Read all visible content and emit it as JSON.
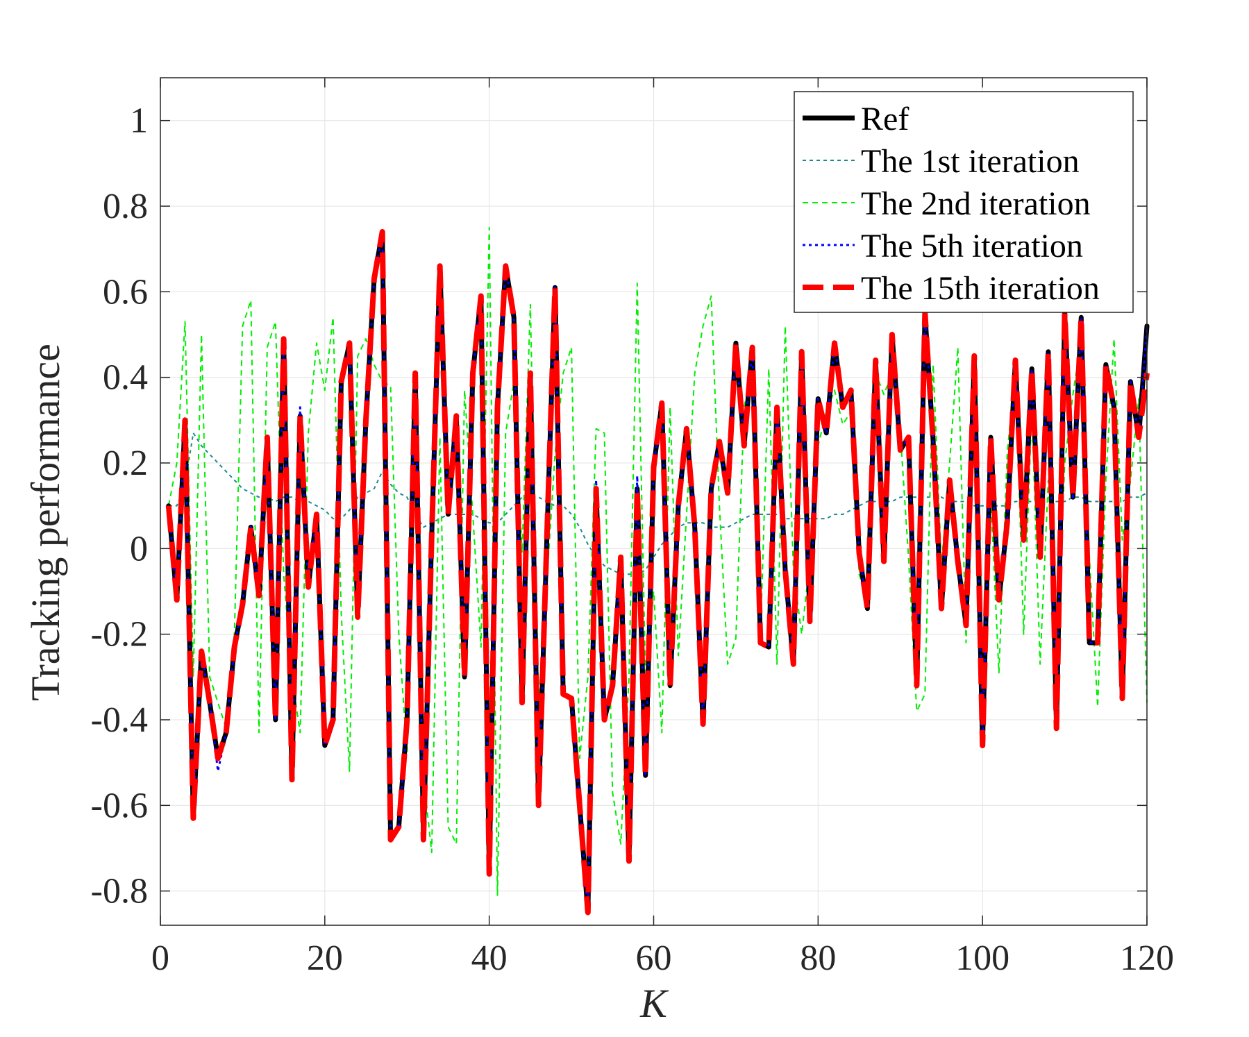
{
  "chart_data": {
    "type": "line",
    "xlabel": "K",
    "ylabel": "Tracking performance",
    "xlim": [
      0,
      120
    ],
    "ylim": [
      -0.88,
      1.1
    ],
    "xticks": [
      0,
      20,
      40,
      60,
      80,
      100,
      120
    ],
    "yticks": [
      -0.8,
      -0.6,
      -0.4,
      -0.2,
      0,
      0.2,
      0.4,
      0.6,
      0.8,
      1
    ],
    "ytick_labels": [
      "-0.8",
      "-0.6",
      "-0.4",
      "-0.2",
      "0",
      "0.2",
      "0.4",
      "0.6",
      "0.8",
      "1"
    ],
    "xtick_labels": [
      "0",
      "20",
      "40",
      "60",
      "80",
      "100",
      "120"
    ],
    "grid": true,
    "legend_position": "top-right",
    "x": [
      1,
      2,
      3,
      4,
      5,
      6,
      7,
      8,
      9,
      10,
      11,
      12,
      13,
      14,
      15,
      16,
      17,
      18,
      19,
      20,
      21,
      22,
      23,
      24,
      25,
      26,
      27,
      28,
      29,
      30,
      31,
      32,
      33,
      34,
      35,
      36,
      37,
      38,
      39,
      40,
      41,
      42,
      43,
      44,
      45,
      46,
      47,
      48,
      49,
      50,
      51,
      52,
      53,
      54,
      55,
      56,
      57,
      58,
      59,
      60,
      61,
      62,
      63,
      64,
      65,
      66,
      67,
      68,
      69,
      70,
      71,
      72,
      73,
      74,
      75,
      76,
      77,
      78,
      79,
      80,
      81,
      82,
      83,
      84,
      85,
      86,
      87,
      88,
      89,
      90,
      91,
      92,
      93,
      94,
      95,
      96,
      97,
      98,
      99,
      100,
      101,
      102,
      103,
      104,
      105,
      106,
      107,
      108,
      109,
      110,
      111,
      112,
      113,
      114,
      115,
      116,
      117,
      118,
      119,
      120
    ],
    "series": [
      {
        "name": "Ref",
        "color": "#000000",
        "dash": "solid",
        "width": 7,
        "values": [
          0.1,
          -0.12,
          0.3,
          -0.63,
          -0.24,
          -0.36,
          -0.49,
          -0.43,
          -0.23,
          -0.13,
          0.05,
          -0.11,
          0.26,
          -0.4,
          0.49,
          -0.54,
          0.31,
          -0.09,
          0.08,
          -0.46,
          -0.4,
          0.39,
          0.48,
          -0.16,
          0.3,
          0.63,
          0.74,
          -0.68,
          -0.65,
          -0.4,
          0.41,
          -0.68,
          0.03,
          0.66,
          0.08,
          0.31,
          -0.3,
          0.41,
          0.59,
          -0.76,
          0.33,
          0.66,
          0.54,
          -0.36,
          0.41,
          -0.6,
          0.02,
          0.61,
          -0.34,
          -0.35,
          -0.6,
          -0.85,
          0.14,
          -0.4,
          -0.32,
          -0.02,
          -0.73,
          0.14,
          -0.53,
          0.19,
          0.34,
          -0.32,
          0.1,
          0.28,
          0.05,
          -0.41,
          0.14,
          0.25,
          0.13,
          0.48,
          0.24,
          0.47,
          -0.22,
          -0.23,
          0.33,
          -0.05,
          -0.27,
          0.46,
          -0.17,
          0.35,
          0.27,
          0.48,
          0.33,
          0.37,
          -0.01,
          -0.14,
          0.44,
          -0.03,
          0.5,
          0.23,
          0.26,
          -0.32,
          0.55,
          0.25,
          -0.14,
          0.16,
          -0.03,
          -0.18,
          0.45,
          -0.46,
          0.26,
          -0.12,
          0.06,
          0.44,
          0.02,
          0.42,
          -0.02,
          0.46,
          -0.42,
          0.55,
          0.12,
          0.54,
          -0.22,
          -0.22,
          0.43,
          0.33,
          -0.35,
          0.39,
          0.26,
          0.52
        ]
      },
      {
        "name": "The 1st iteration",
        "color": "#1a8a8a",
        "dash": "5,5",
        "width": 2,
        "values": [
          0.1,
          0.1,
          0.15,
          0.27,
          0.24,
          0.22,
          0.2,
          0.18,
          0.16,
          0.14,
          0.13,
          0.12,
          0.12,
          0.11,
          0.12,
          0.12,
          0.11,
          0.11,
          0.1,
          0.09,
          0.07,
          0.07,
          0.09,
          0.12,
          0.13,
          0.14,
          0.18,
          0.15,
          0.13,
          0.12,
          0.08,
          0.05,
          0.06,
          0.07,
          0.08,
          0.08,
          0.08,
          0.08,
          0.07,
          0.06,
          0.06,
          0.08,
          0.1,
          0.12,
          0.12,
          0.12,
          0.11,
          0.1,
          0.1,
          0.08,
          0.05,
          0.01,
          -0.02,
          -0.04,
          -0.05,
          -0.06,
          -0.06,
          -0.06,
          -0.05,
          -0.02,
          0.01,
          0.03,
          0.05,
          0.06,
          0.06,
          0.06,
          0.05,
          0.05,
          0.05,
          0.06,
          0.07,
          0.08,
          0.08,
          0.08,
          0.08,
          0.07,
          0.07,
          0.07,
          0.07,
          0.07,
          0.07,
          0.08,
          0.08,
          0.09,
          0.1,
          0.11,
          0.11,
          0.11,
          0.11,
          0.12,
          0.12,
          0.12,
          0.12,
          0.12,
          0.12,
          0.11,
          0.11,
          0.11,
          0.1,
          0.1,
          0.1,
          0.1,
          0.1,
          0.11,
          0.11,
          0.11,
          0.11,
          0.11,
          0.11,
          0.11,
          0.12,
          0.12,
          0.11,
          0.11,
          0.11,
          0.11,
          0.11,
          0.12,
          0.12,
          0.13
        ]
      },
      {
        "name": "The 2nd iteration",
        "color": "#00ee00",
        "dash": "8,6",
        "width": 2,
        "values": [
          0.1,
          0.2,
          0.53,
          -0.3,
          0.5,
          -0.3,
          -0.36,
          -0.42,
          -0.2,
          0.52,
          0.58,
          -0.43,
          0.47,
          0.53,
          -0.06,
          -0.3,
          -0.43,
          0.27,
          0.48,
          0.37,
          0.54,
          -0.15,
          -0.52,
          0.45,
          0.49,
          0.43,
          0.39,
          0.38,
          -0.2,
          -0.48,
          0.18,
          -0.53,
          -0.71,
          0.26,
          -0.65,
          -0.69,
          0.37,
          0.08,
          -0.23,
          0.75,
          -0.81,
          0.27,
          0.39,
          -0.01,
          0.57,
          -0.36,
          -0.08,
          0.22,
          0.41,
          0.47,
          -0.49,
          -0.3,
          0.28,
          0.27,
          -0.57,
          -0.69,
          -0.3,
          0.62,
          -0.3,
          -0.1,
          -0.43,
          0.33,
          -0.25,
          0.08,
          0.41,
          0.52,
          0.59,
          0.1,
          -0.27,
          -0.21,
          0.33,
          0.42,
          -0.2,
          0.42,
          -0.27,
          0.52,
          -0.05,
          -0.2,
          -0.03,
          0.24,
          0.32,
          0.37,
          0.29,
          0.32,
          -0.06,
          -0.12,
          0.41,
          0.36,
          0.41,
          0.27,
          -0.02,
          -0.38,
          -0.34,
          0.43,
          -0.04,
          0.2,
          0.47,
          -0.22,
          0.44,
          -0.35,
          0.12,
          -0.29,
          0.22,
          0.43,
          -0.2,
          0.33,
          -0.27,
          0.16,
          -0.27,
          0.2,
          0.36,
          0.49,
          -0.02,
          -0.37,
          0.16,
          0.49,
          0.02,
          0.16,
          0.35,
          -0.36
        ]
      },
      {
        "name": "The 5th iteration",
        "color": "#0000ff",
        "dash": "4,5",
        "width": 3,
        "values": [
          0.1,
          -0.12,
          0.3,
          -0.63,
          -0.24,
          -0.36,
          -0.52,
          -0.43,
          -0.23,
          -0.13,
          0.05,
          -0.11,
          0.26,
          -0.4,
          0.49,
          -0.54,
          0.33,
          -0.09,
          0.08,
          -0.46,
          -0.4,
          0.39,
          0.48,
          -0.16,
          0.3,
          0.63,
          0.74,
          -0.68,
          -0.65,
          -0.4,
          0.41,
          -0.68,
          0.03,
          0.66,
          0.08,
          0.31,
          -0.3,
          0.41,
          0.59,
          -0.76,
          0.33,
          0.66,
          0.54,
          -0.36,
          0.41,
          -0.6,
          0.02,
          0.61,
          -0.34,
          -0.35,
          -0.6,
          -0.85,
          0.16,
          -0.4,
          -0.32,
          -0.02,
          -0.73,
          0.17,
          -0.53,
          0.19,
          0.34,
          -0.32,
          0.1,
          0.28,
          0.05,
          -0.41,
          0.14,
          0.25,
          0.13,
          0.48,
          0.24,
          0.47,
          -0.22,
          -0.23,
          0.33,
          -0.05,
          -0.27,
          0.46,
          -0.17,
          0.35,
          0.27,
          0.48,
          0.33,
          0.37,
          -0.01,
          -0.14,
          0.44,
          -0.03,
          0.5,
          0.23,
          0.26,
          -0.32,
          0.55,
          0.25,
          -0.14,
          0.16,
          -0.03,
          -0.18,
          0.45,
          -0.46,
          0.26,
          -0.12,
          0.06,
          0.44,
          0.02,
          0.42,
          -0.02,
          0.46,
          -0.42,
          0.55,
          0.12,
          0.54,
          -0.22,
          -0.22,
          0.43,
          0.33,
          -0.35,
          0.39,
          0.26,
          0.52
        ]
      },
      {
        "name": "The 15th iteration",
        "color": "#ff0000",
        "dash": "38,14",
        "width": 8,
        "values": [
          0.1,
          -0.12,
          0.3,
          -0.63,
          -0.24,
          -0.36,
          -0.49,
          -0.43,
          -0.23,
          -0.13,
          0.05,
          -0.11,
          0.26,
          -0.4,
          0.49,
          -0.54,
          0.31,
          -0.09,
          0.08,
          -0.46,
          -0.4,
          0.39,
          0.48,
          -0.16,
          0.3,
          0.63,
          0.74,
          -0.68,
          -0.65,
          -0.4,
          0.41,
          -0.68,
          0.03,
          0.66,
          0.08,
          0.31,
          -0.3,
          0.41,
          0.59,
          -0.76,
          0.33,
          0.66,
          0.54,
          -0.36,
          0.41,
          -0.6,
          0.02,
          0.61,
          -0.34,
          -0.35,
          -0.6,
          -0.85,
          0.14,
          -0.4,
          -0.32,
          -0.02,
          -0.73,
          0.14,
          -0.53,
          0.19,
          0.34,
          -0.32,
          0.1,
          0.28,
          0.05,
          -0.41,
          0.14,
          0.25,
          0.13,
          0.48,
          0.24,
          0.47,
          -0.22,
          -0.23,
          0.33,
          -0.05,
          -0.27,
          0.46,
          -0.17,
          0.35,
          0.27,
          0.48,
          0.33,
          0.37,
          -0.01,
          -0.14,
          0.44,
          -0.03,
          0.5,
          0.23,
          0.26,
          -0.32,
          0.55,
          0.25,
          -0.14,
          0.16,
          -0.03,
          -0.18,
          0.45,
          -0.46,
          0.26,
          -0.12,
          0.06,
          0.44,
          0.02,
          0.42,
          -0.02,
          0.46,
          -0.42,
          0.55,
          0.12,
          0.54,
          -0.22,
          -0.22,
          0.43,
          0.33,
          -0.35,
          0.39,
          0.26,
          0.41
        ]
      }
    ]
  }
}
